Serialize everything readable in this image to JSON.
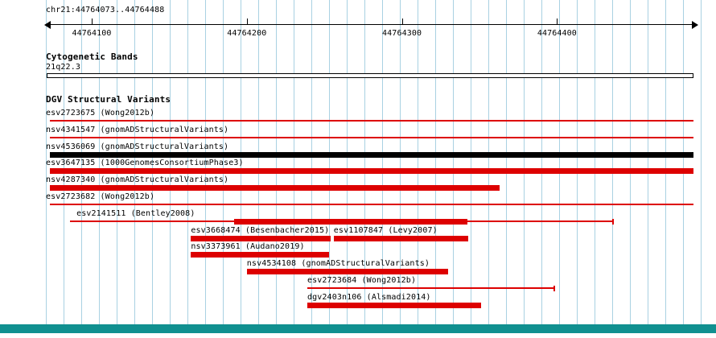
{
  "header": {
    "locus": "chr21:44764073..44764488"
  },
  "sections": {
    "cytogenetic_title": "Cytogenetic Bands",
    "band_label": "21q22.3",
    "dgv_title": "DGV Structural Variants"
  },
  "colors": {
    "variant_red": "#dd0000",
    "variant_black": "#000000",
    "grid_line": "#a9d1e2",
    "scrollbar_teal": "#109090"
  },
  "chart_data": {
    "type": "genome-tracks",
    "view": {
      "chromosome": "chr21",
      "start": 44764073,
      "end": 44764488
    },
    "ruler_ticks": [
      {
        "pos": 44764100,
        "label": "44764100"
      },
      {
        "pos": 44764200,
        "label": "44764200"
      },
      {
        "pos": 44764300,
        "label": "44764300"
      },
      {
        "pos": 44764400,
        "label": "44764400"
      }
    ],
    "cytogenetic_band": {
      "label": "21q22.3",
      "start": 44764073,
      "end": 44764488
    },
    "variant_rows": [
      [
        {
          "label": "esv2723675 (Wong2012b)",
          "start": 44764073,
          "end": 44764488,
          "glyph": "line",
          "color": "red"
        }
      ],
      [
        {
          "label": "nsv4341547 (gnomADStructuralVariants)",
          "start": 44764073,
          "end": 44764488,
          "glyph": "line",
          "color": "red"
        }
      ],
      [
        {
          "label": "nsv4536069 (gnomADStructuralVariants)",
          "start": 44764073,
          "end": 44764488,
          "glyph": "box",
          "color": "black"
        }
      ],
      [
        {
          "label": "esv3647135 (1000GenomesConsortiumPhase3)",
          "start": 44764073,
          "end": 44764488,
          "glyph": "box",
          "color": "red"
        }
      ],
      [
        {
          "label": "nsv4287340 (gnomADStructuralVariants)",
          "start": 44764073,
          "end": 44764363,
          "glyph": "box",
          "color": "red"
        }
      ],
      [
        {
          "label": "esv2723682 (Wong2012b)",
          "start": 44764073,
          "end": 44764488,
          "glyph": "line",
          "color": "red"
        }
      ],
      [
        {
          "label": "esv2141511 (Bentley2008)",
          "start": 44764086,
          "end": 44764436,
          "glyph": "range",
          "color": "red",
          "thick": [
            44764192,
            44764342
          ],
          "end_tick": true,
          "label_dx": 8
        }
      ],
      [
        {
          "label": "esv3668474 (Besenbacher2015)",
          "start": 44764164,
          "end": 44764254,
          "glyph": "box",
          "color": "red"
        },
        {
          "label": "esv1107847 (Levy2007)",
          "start": 44764256,
          "end": 44764343,
          "glyph": "box",
          "color": "red"
        }
      ],
      [
        {
          "label": "nsv3373961 (Audano2019)",
          "start": 44764164,
          "end": 44764253,
          "glyph": "box",
          "color": "red"
        }
      ],
      [
        {
          "label": "nsv4534108 (gnomADStructuralVariants)",
          "start": 44764200,
          "end": 44764330,
          "glyph": "box",
          "color": "red"
        }
      ],
      [
        {
          "label": "esv2723684 (Wong2012b)",
          "start": 44764239,
          "end": 44764398,
          "glyph": "range",
          "color": "red",
          "end_tick": true
        }
      ],
      [
        {
          "label": "dgv2403n106 (Alsmadi2014)",
          "start": 44764239,
          "end": 44764351,
          "glyph": "box",
          "color": "red"
        }
      ]
    ]
  }
}
